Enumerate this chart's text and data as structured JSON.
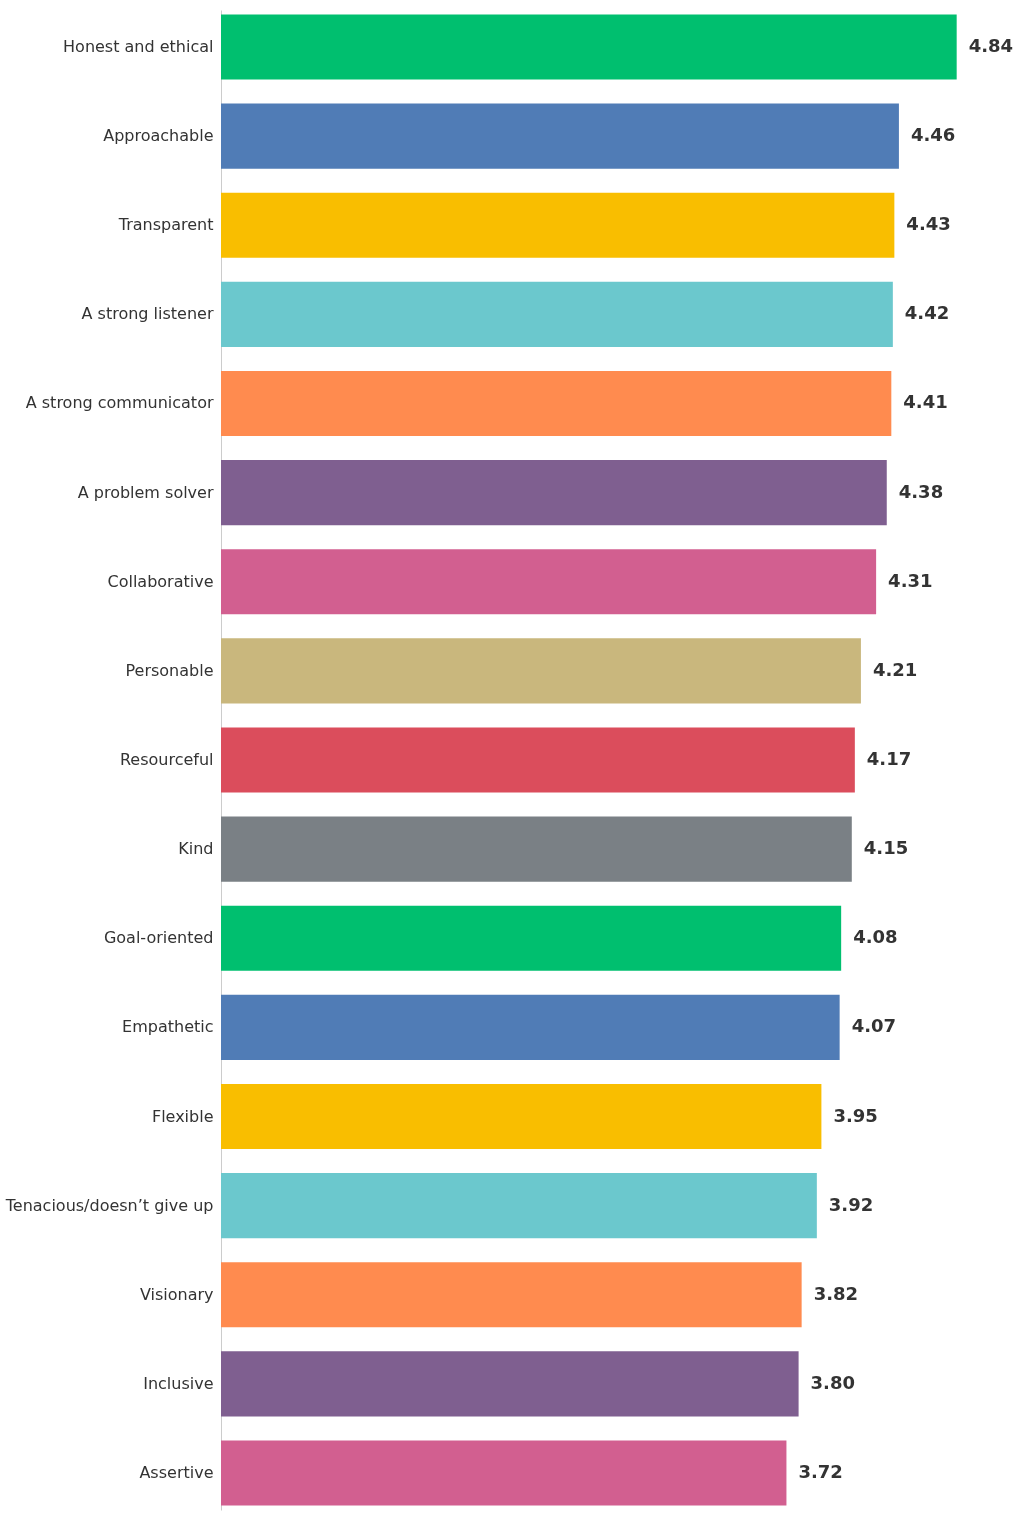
{
  "chart_data": {
    "type": "bar",
    "orientation": "horizontal",
    "categories": [
      "Honest and ethical",
      "Approachable",
      "Transparent",
      "A strong listener",
      "A strong communicator",
      "A problem solver",
      "Collaborative",
      "Personable",
      "Resourceful",
      "Kind",
      "Goal-oriented",
      "Empathetic",
      "Flexible",
      "Tenacious/doesn’t give up",
      "Visionary",
      "Inclusive",
      "Assertive"
    ],
    "values": [
      4.84,
      4.46,
      4.43,
      4.42,
      4.41,
      4.38,
      4.31,
      4.21,
      4.17,
      4.15,
      4.08,
      4.07,
      3.95,
      3.92,
      3.82,
      3.8,
      3.72
    ],
    "value_labels": [
      "4.84",
      "4.46",
      "4.43",
      "4.42",
      "4.41",
      "4.38",
      "4.31",
      "4.21",
      "4.17",
      "4.15",
      "4.08",
      "4.07",
      "3.95",
      "3.92",
      "3.82",
      "3.80",
      "3.72"
    ],
    "colors": [
      "#00bf6f",
      "#507cb6",
      "#f9be00",
      "#6bc8cd",
      "#ff8b4f",
      "#7f5f90",
      "#d25f90",
      "#c9b77d",
      "#db4d5c",
      "#7a8085",
      "#00bf6f",
      "#507cb6",
      "#f9be00",
      "#6bc8cd",
      "#ff8b4f",
      "#7f5f90",
      "#d25f90"
    ]
  }
}
